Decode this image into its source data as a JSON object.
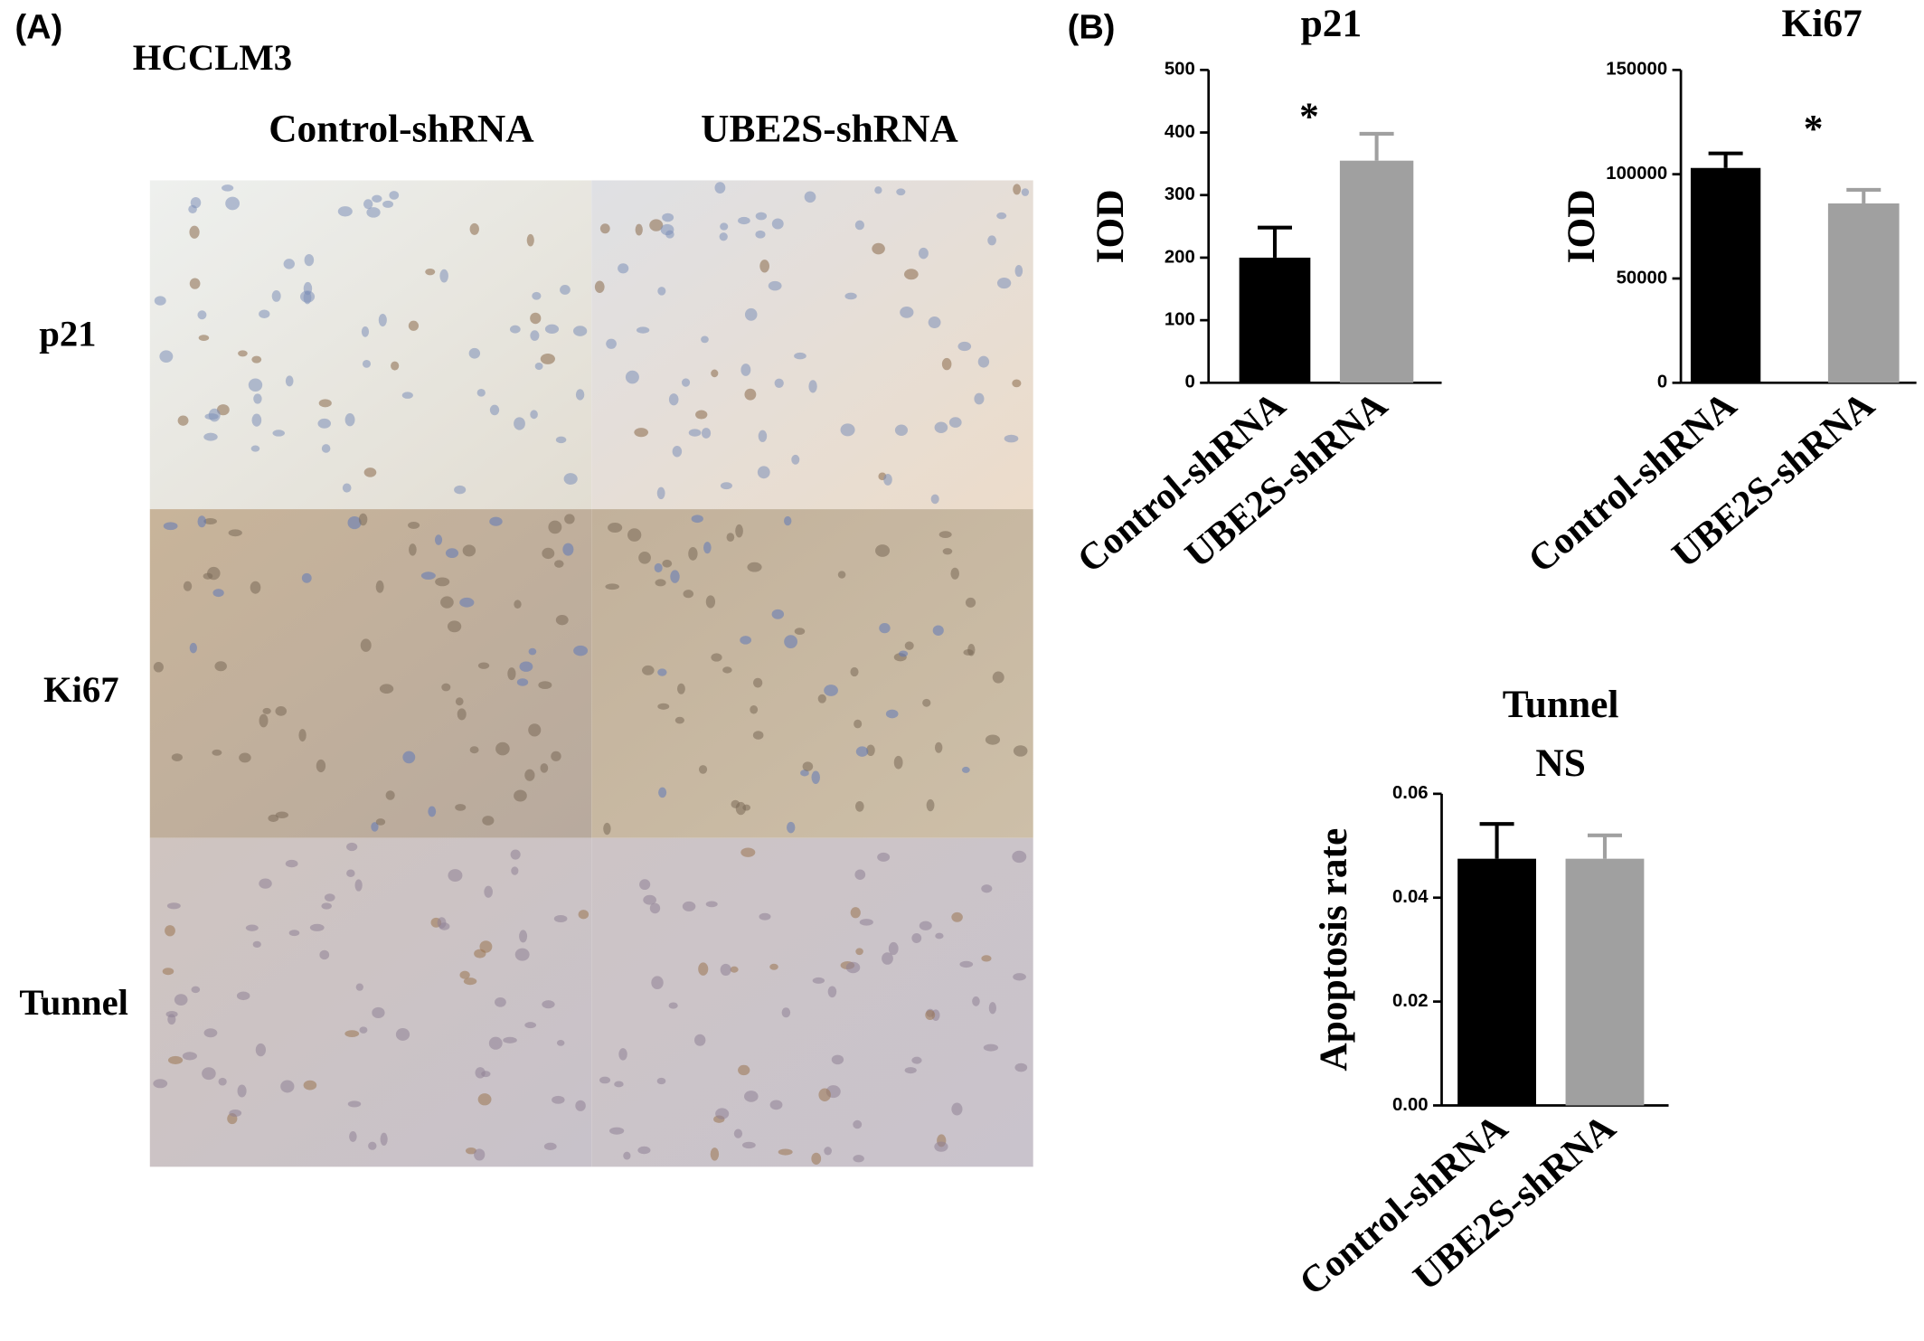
{
  "panel_a": {
    "label": "(A)",
    "cell_line": "HCCLM3",
    "columns": [
      "Control-shRNA",
      "UBE2S-shRNA"
    ],
    "rows": [
      "p21",
      "Ki67",
      "Tunnel"
    ]
  },
  "panel_b_label": "(B)",
  "chart_data": [
    {
      "type": "bar",
      "title": "p21",
      "ylabel": "IOD",
      "annotation": "*",
      "categories": [
        "Control-shRNA",
        "UBE2S-shRNA"
      ],
      "values": [
        200,
        355
      ],
      "errors": [
        48,
        43
      ],
      "colors": [
        "#000000",
        "#a0a0a0"
      ],
      "ylim": [
        0,
        500
      ],
      "yticks": [
        0,
        100,
        200,
        300,
        400,
        500
      ]
    },
    {
      "type": "bar",
      "title": "Ki67",
      "ylabel": "IOD",
      "annotation": "*",
      "categories": [
        "Control-shRNA",
        "UBE2S-shRNA"
      ],
      "values": [
        103000,
        86000
      ],
      "errors": [
        7000,
        6500
      ],
      "colors": [
        "#000000",
        "#a0a0a0"
      ],
      "ylim": [
        0,
        150000
      ],
      "yticks": [
        0,
        50000,
        100000,
        150000
      ]
    },
    {
      "type": "bar",
      "title": "Tunnel",
      "subtitle": "NS",
      "ylabel": "Apoptosis rate",
      "categories": [
        "Control-shRNA",
        "UBE2S-shRNA"
      ],
      "values": [
        0.0475,
        0.0475
      ],
      "errors": [
        0.0067,
        0.0045
      ],
      "colors": [
        "#000000",
        "#a0a0a0"
      ],
      "ylim": [
        0,
        0.06
      ],
      "yticks": [
        {
          "value": 0,
          "label": "0.00"
        },
        {
          "value": 0.02,
          "label": "0.02"
        },
        {
          "value": 0.04,
          "label": "0.04"
        },
        {
          "value": 0.06,
          "label": "0.06"
        }
      ]
    }
  ]
}
